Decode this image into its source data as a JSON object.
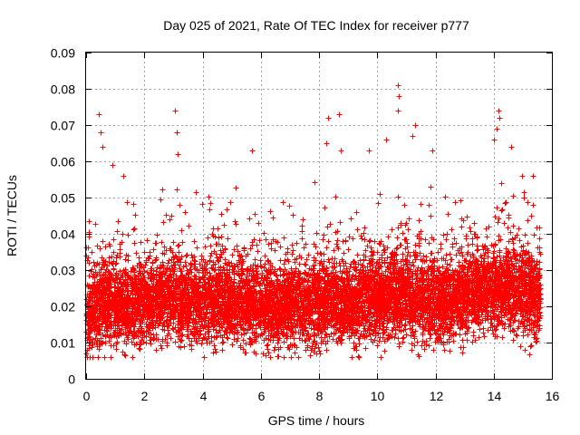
{
  "chart_data": {
    "type": "scatter",
    "title": "Day 025 of 2021, Rate Of TEC Index for receiver p777",
    "xlabel": "GPS time / hours",
    "ylabel": "ROTI / TECUs",
    "xlim": [
      0,
      16
    ],
    "ylim": [
      0,
      0.09
    ],
    "xticks": [
      "0",
      "2",
      "4",
      "6",
      "8",
      "10",
      "12",
      "14",
      "16"
    ],
    "yticks": [
      "0",
      "0.01",
      "0.02",
      "0.03",
      "0.04",
      "0.05",
      "0.06",
      "0.07",
      "0.08",
      "0.09"
    ],
    "grid": true,
    "marker": "+",
    "color": "#ff0000",
    "x_range_observed": [
      0,
      15.6
    ],
    "baseline": [
      [
        0.0,
        0.017
      ],
      [
        0.5,
        0.02
      ],
      [
        1.0,
        0.021
      ],
      [
        1.5,
        0.019
      ],
      [
        2.0,
        0.02
      ],
      [
        2.5,
        0.022
      ],
      [
        3.0,
        0.023
      ],
      [
        3.5,
        0.021
      ],
      [
        4.0,
        0.021
      ],
      [
        4.5,
        0.022
      ],
      [
        5.0,
        0.021
      ],
      [
        5.5,
        0.021
      ],
      [
        6.0,
        0.02
      ],
      [
        6.5,
        0.019
      ],
      [
        7.0,
        0.02
      ],
      [
        7.5,
        0.02
      ],
      [
        8.0,
        0.021
      ],
      [
        8.5,
        0.021
      ],
      [
        9.0,
        0.02
      ],
      [
        9.5,
        0.021
      ],
      [
        10.0,
        0.022
      ],
      [
        10.5,
        0.023
      ],
      [
        11.0,
        0.023
      ],
      [
        11.5,
        0.022
      ],
      [
        12.0,
        0.021
      ],
      [
        12.5,
        0.022
      ],
      [
        13.0,
        0.023
      ],
      [
        13.5,
        0.024
      ],
      [
        14.0,
        0.025
      ],
      [
        14.5,
        0.025
      ],
      [
        15.0,
        0.024
      ],
      [
        15.6,
        0.022
      ]
    ],
    "peaks": [
      {
        "x": 0.45,
        "y": 0.073
      },
      {
        "x": 0.5,
        "y": 0.068
      },
      {
        "x": 0.55,
        "y": 0.064
      },
      {
        "x": 0.9,
        "y": 0.059
      },
      {
        "x": 3.05,
        "y": 0.074
      },
      {
        "x": 3.1,
        "y": 0.068
      },
      {
        "x": 3.15,
        "y": 0.062
      },
      {
        "x": 5.7,
        "y": 0.063
      },
      {
        "x": 8.3,
        "y": 0.072
      },
      {
        "x": 8.25,
        "y": 0.065
      },
      {
        "x": 8.7,
        "y": 0.073
      },
      {
        "x": 8.75,
        "y": 0.063
      },
      {
        "x": 9.7,
        "y": 0.063
      },
      {
        "x": 10.3,
        "y": 0.066
      },
      {
        "x": 10.7,
        "y": 0.081
      },
      {
        "x": 10.75,
        "y": 0.078
      },
      {
        "x": 10.7,
        "y": 0.074
      },
      {
        "x": 11.3,
        "y": 0.07
      },
      {
        "x": 11.2,
        "y": 0.067
      },
      {
        "x": 11.9,
        "y": 0.063
      },
      {
        "x": 14.15,
        "y": 0.074
      },
      {
        "x": 14.2,
        "y": 0.072
      },
      {
        "x": 14.1,
        "y": 0.069
      },
      {
        "x": 14.0,
        "y": 0.066
      },
      {
        "x": 14.6,
        "y": 0.064
      }
    ],
    "n_points": 9000,
    "seed": 25
  }
}
